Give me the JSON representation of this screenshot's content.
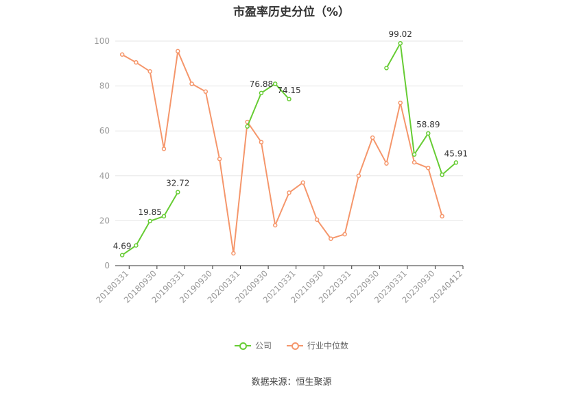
{
  "title": "市盈率历史分位（%）",
  "source": "数据来源：恒生聚源",
  "chart_data": {
    "type": "line",
    "title": "市盈率历史分位（%）",
    "ylim": [
      0,
      100
    ],
    "yticks": [
      0,
      20,
      40,
      60,
      80,
      100
    ],
    "grid": true,
    "legend_position": "bottom",
    "x": [
      "20180331",
      "20180630",
      "20180930",
      "20181231",
      "20190331",
      "20190630",
      "20190930",
      "20191231",
      "20200331",
      "20200630",
      "20200930",
      "20201231",
      "20210331",
      "20210630",
      "20210930",
      "20211231",
      "20220331",
      "20220630",
      "20220930",
      "20221231",
      "20230331",
      "20230630",
      "20230930",
      "20231231",
      "20240412"
    ],
    "x_tick_labels": [
      "20180331",
      "20180930",
      "20190331",
      "20190930",
      "20200331",
      "20200930",
      "20210331",
      "20210930",
      "20220331",
      "20220930",
      "20230331",
      "20230930",
      "20240412"
    ],
    "series": [
      {
        "name": "公司",
        "color": "#66cc33",
        "values": [
          4.69,
          9,
          19.85,
          22,
          32.72,
          null,
          null,
          null,
          null,
          62,
          76.88,
          81,
          74.15,
          null,
          null,
          null,
          null,
          null,
          null,
          88,
          99.02,
          49.5,
          58.89,
          40.5,
          45.91
        ],
        "labels": {
          "0": "4.69",
          "2": "19.85",
          "4": "32.72",
          "10": "76.88",
          "12": "74.15",
          "20": "99.02",
          "22": "58.89",
          "24": "45.91"
        }
      },
      {
        "name": "行业中位数",
        "color": "#f5966b",
        "values": [
          94,
          90.5,
          86.5,
          52,
          95.5,
          81,
          77.5,
          47.5,
          5.5,
          64,
          55,
          18,
          32.5,
          37,
          20.5,
          12,
          14,
          40,
          57,
          45.5,
          72.5,
          46,
          43.5,
          22,
          null
        ]
      }
    ]
  }
}
